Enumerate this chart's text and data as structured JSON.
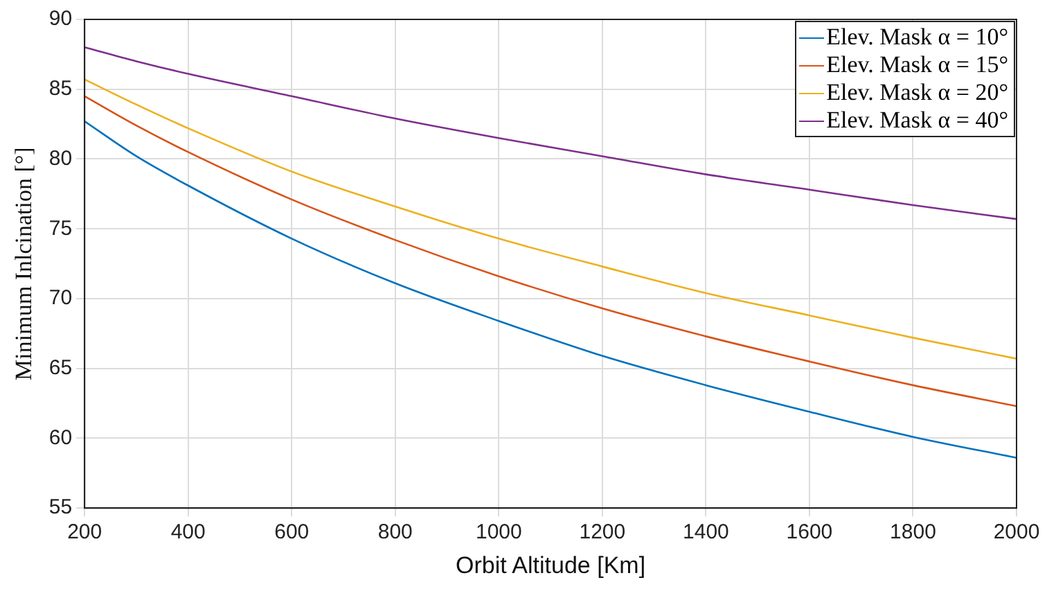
{
  "chart_data": {
    "type": "line",
    "xlabel": "Orbit Altitude [Km]",
    "ylabel": "Minimum Inlcination [°]",
    "x": [
      200,
      300,
      400,
      600,
      800,
      1000,
      1200,
      1400,
      1600,
      1800,
      2000
    ],
    "series": [
      {
        "name": "Elev. Mask α = 10°",
        "color": "#0072bd",
        "values": [
          82.7,
          80.2,
          78.1,
          74.3,
          71.1,
          68.4,
          65.9,
          63.8,
          61.9,
          60.1,
          58.6
        ]
      },
      {
        "name": "Elev. Mask α = 15°",
        "color": "#d95319",
        "values": [
          84.5,
          82.4,
          80.5,
          77.1,
          74.2,
          71.6,
          69.3,
          67.3,
          65.5,
          63.8,
          62.3
        ]
      },
      {
        "name": "Elev. Mask α = 20°",
        "color": "#edb120",
        "values": [
          85.7,
          83.9,
          82.2,
          79.1,
          76.6,
          74.3,
          72.3,
          70.4,
          68.8,
          67.2,
          65.7
        ]
      },
      {
        "name": "Elev. Mask α = 40°",
        "color": "#7e2f8e",
        "values": [
          88.0,
          87.0,
          86.1,
          84.5,
          82.9,
          81.5,
          80.2,
          78.9,
          77.8,
          76.7,
          75.7
        ]
      }
    ],
    "xlim": [
      200,
      2000
    ],
    "xticks": [
      200,
      400,
      600,
      800,
      1000,
      1200,
      1400,
      1600,
      1800,
      2000
    ],
    "ylim": [
      55,
      90
    ],
    "yticks": [
      55,
      60,
      65,
      70,
      75,
      80,
      85,
      90
    ],
    "grid": true,
    "legend": "top right",
    "marker": "none",
    "line_style": "solid"
  }
}
